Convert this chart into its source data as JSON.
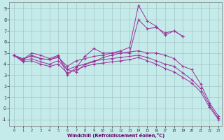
{
  "xlabel": "Windchill (Refroidissement éolien,°C)",
  "background_color": "#c5eaea",
  "line_color": "#993399",
  "grid_color": "#9bbcbc",
  "xlim_min": -0.5,
  "xlim_max": 23.4,
  "ylim_min": -1.6,
  "ylim_max": 9.6,
  "yticks": [
    -1,
    0,
    1,
    2,
    3,
    4,
    5,
    6,
    7,
    8,
    9
  ],
  "xticks": [
    0,
    1,
    2,
    3,
    4,
    5,
    6,
    7,
    8,
    9,
    10,
    11,
    12,
    13,
    14,
    15,
    16,
    17,
    18,
    19,
    20,
    21,
    22,
    23
  ],
  "lines": [
    {
      "x": [
        0,
        1,
        2,
        3,
        4,
        5,
        6,
        7,
        8,
        9,
        10,
        11,
        12,
        13,
        14,
        15,
        16,
        17,
        18,
        19
      ],
      "y": [
        4.8,
        4.4,
        5.0,
        4.8,
        4.5,
        4.8,
        3.0,
        3.7,
        4.7,
        5.4,
        5.0,
        5.0,
        5.2,
        5.5,
        9.3,
        7.9,
        7.4,
        6.6,
        7.0,
        6.5
      ]
    },
    {
      "x": [
        0,
        1,
        2,
        3,
        4,
        5,
        6,
        7,
        8,
        9,
        10,
        11,
        12,
        13,
        14,
        15,
        16,
        17,
        18,
        19
      ],
      "y": [
        4.8,
        4.4,
        4.8,
        4.5,
        4.4,
        4.7,
        3.5,
        3.3,
        4.0,
        4.2,
        4.6,
        4.8,
        5.0,
        5.0,
        8.0,
        7.2,
        7.3,
        6.8,
        7.0,
        6.5
      ]
    },
    {
      "x": [
        0,
        1,
        2,
        3,
        4,
        5,
        6,
        7,
        8,
        9,
        10,
        11,
        12,
        13,
        14,
        15,
        16,
        17,
        18,
        19,
        20,
        21,
        22,
        23
      ],
      "y": [
        4.8,
        4.5,
        4.7,
        4.5,
        4.4,
        4.6,
        3.8,
        4.3,
        4.5,
        4.7,
        4.8,
        5.0,
        5.0,
        5.1,
        5.2,
        5.0,
        5.0,
        4.8,
        4.5,
        3.8,
        3.5,
        2.2,
        0.5,
        -0.7
      ]
    },
    {
      "x": [
        0,
        1,
        2,
        3,
        4,
        5,
        6,
        7,
        8,
        9,
        10,
        11,
        12,
        13,
        14,
        15,
        16,
        17,
        18,
        19,
        20,
        21,
        22,
        23
      ],
      "y": [
        4.8,
        4.3,
        4.5,
        4.2,
        4.0,
        4.3,
        3.5,
        3.8,
        4.0,
        4.3,
        4.4,
        4.5,
        4.6,
        4.7,
        4.8,
        4.6,
        4.3,
        4.0,
        3.8,
        3.2,
        2.6,
        1.8,
        0.3,
        -0.9
      ]
    },
    {
      "x": [
        0,
        1,
        2,
        3,
        4,
        5,
        6,
        7,
        8,
        9,
        10,
        11,
        12,
        13,
        14,
        15,
        16,
        17,
        18,
        19,
        20,
        21,
        22,
        23
      ],
      "y": [
        4.8,
        4.2,
        4.3,
        4.0,
        3.8,
        4.0,
        3.2,
        3.5,
        3.8,
        4.0,
        4.1,
        4.2,
        4.3,
        4.4,
        4.6,
        4.3,
        4.0,
        3.6,
        3.3,
        2.8,
        2.3,
        1.5,
        0.1,
        -1.0
      ]
    }
  ]
}
